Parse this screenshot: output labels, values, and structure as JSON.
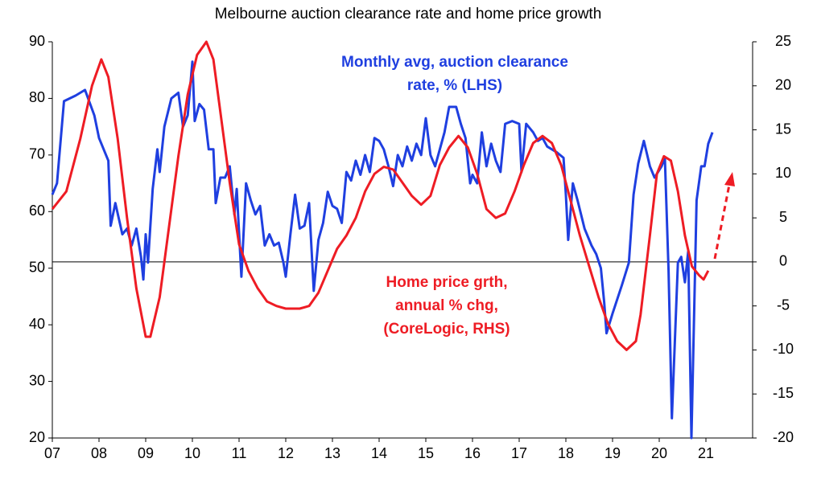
{
  "chart_data": {
    "type": "line",
    "title": "Melbourne auction clearance rate and home price growth",
    "annotations": [
      {
        "lines": [
          "Monthly avg, auction clearance",
          "rate, % (LHS)"
        ],
        "color": "#1f3fe0"
      },
      {
        "lines": [
          "Home price grth,",
          "annual % chg,",
          "(CoreLogic, RHS)"
        ],
        "color": "#ee1c24"
      }
    ],
    "xlim": [
      2007,
      2022
    ],
    "xticks": [
      {
        "value": 2007,
        "label": "07"
      },
      {
        "value": 2008,
        "label": "08"
      },
      {
        "value": 2009,
        "label": "09"
      },
      {
        "value": 2010,
        "label": "10"
      },
      {
        "value": 2011,
        "label": "11"
      },
      {
        "value": 2012,
        "label": "12"
      },
      {
        "value": 2013,
        "label": "13"
      },
      {
        "value": 2014,
        "label": "14"
      },
      {
        "value": 2015,
        "label": "15"
      },
      {
        "value": 2016,
        "label": "16"
      },
      {
        "value": 2017,
        "label": "17"
      },
      {
        "value": 2018,
        "label": "18"
      },
      {
        "value": 2019,
        "label": "19"
      },
      {
        "value": 2020,
        "label": "20"
      },
      {
        "value": 2021,
        "label": "21"
      }
    ],
    "ylim": [
      20,
      90
    ],
    "yticks": [
      20,
      30,
      40,
      50,
      60,
      70,
      80,
      90
    ],
    "y2lim": [
      -20,
      25
    ],
    "y2ticks": [
      -20,
      -15,
      -10,
      -5,
      0,
      5,
      10,
      15,
      20,
      25
    ],
    "series": [
      {
        "color": "#1f3fe0",
        "axis": "y",
        "x": [
          2007.0,
          2007.1,
          2007.25,
          2007.5,
          2007.7,
          2007.9,
          2008.0,
          2008.2,
          2008.25,
          2008.35,
          2008.5,
          2008.6,
          2008.7,
          2008.8,
          2008.9,
          2008.95,
          2009.0,
          2009.05,
          2009.15,
          2009.25,
          2009.3,
          2009.4,
          2009.55,
          2009.7,
          2009.8,
          2009.9,
          2010.0,
          2010.05,
          2010.15,
          2010.25,
          2010.35,
          2010.45,
          2010.5,
          2010.6,
          2010.7,
          2010.8,
          2010.9,
          2010.95,
          2011.05,
          2011.15,
          2011.25,
          2011.35,
          2011.45,
          2011.55,
          2011.65,
          2011.75,
          2011.85,
          2011.95,
          2012.0,
          2012.1,
          2012.2,
          2012.3,
          2012.4,
          2012.5,
          2012.6,
          2012.7,
          2012.8,
          2012.9,
          2013.0,
          2013.1,
          2013.2,
          2013.3,
          2013.4,
          2013.5,
          2013.6,
          2013.7,
          2013.8,
          2013.9,
          2014.0,
          2014.1,
          2014.2,
          2014.3,
          2014.4,
          2014.5,
          2014.6,
          2014.7,
          2014.8,
          2014.9,
          2015.0,
          2015.1,
          2015.2,
          2015.3,
          2015.4,
          2015.5,
          2015.65,
          2015.75,
          2015.85,
          2015.95,
          2016.0,
          2016.1,
          2016.2,
          2016.3,
          2016.4,
          2016.5,
          2016.6,
          2016.7,
          2016.85,
          2017.0,
          2017.05,
          2017.15,
          2017.3,
          2017.4,
          2017.5,
          2017.6,
          2017.8,
          2017.95,
          2018.0,
          2018.05,
          2018.15,
          2018.25,
          2018.4,
          2018.55,
          2018.65,
          2018.75,
          2018.82,
          2018.87,
          2019.0,
          2019.2,
          2019.35,
          2019.45,
          2019.55,
          2019.67,
          2019.8,
          2019.9,
          2020.05,
          2020.12,
          2020.2,
          2020.27,
          2020.4,
          2020.47,
          2020.55,
          2020.62,
          2020.69,
          2020.8,
          2020.9,
          2020.97,
          2021.05,
          2021.14
        ],
        "values": [
          63,
          65,
          79.5,
          80.5,
          81.5,
          77,
          73,
          69,
          57.5,
          61.5,
          56,
          57,
          54,
          57,
          52,
          48,
          56,
          51,
          64,
          71,
          67,
          75,
          80,
          81,
          75,
          77,
          86.5,
          76,
          79,
          78,
          71,
          71,
          61.5,
          66,
          66,
          68,
          59.5,
          64,
          48.5,
          65,
          62,
          59.5,
          61,
          54,
          56,
          54,
          54.5,
          51,
          48.5,
          56,
          63,
          57,
          57.5,
          61.5,
          46,
          55,
          58,
          63.5,
          61,
          60.5,
          58,
          67,
          65.5,
          69,
          66.5,
          70,
          67,
          73,
          72.5,
          71,
          68,
          64.5,
          70,
          68,
          71.5,
          69,
          72,
          70,
          76.5,
          70,
          68,
          71,
          74,
          78.5,
          78.5,
          75.5,
          73,
          65,
          66.5,
          65,
          74,
          68,
          72,
          69,
          67,
          75.5,
          76,
          75.5,
          67,
          75.5,
          74,
          72.5,
          73,
          71.5,
          70.5,
          69.5,
          63,
          55,
          65,
          62,
          57,
          54,
          52.5,
          50,
          44,
          38.5,
          42,
          47,
          51,
          63,
          68.5,
          72.5,
          68,
          66,
          68,
          69.5,
          49.5,
          23.5,
          51,
          52,
          47.5,
          53,
          20,
          62,
          68,
          68,
          72,
          74
        ]
      },
      {
        "color": "#ee1c24",
        "axis": "y2",
        "x": [
          2007.0,
          2007.3,
          2007.6,
          2007.85,
          2008.05,
          2008.2,
          2008.4,
          2008.6,
          2008.8,
          2009.0,
          2009.1,
          2009.3,
          2009.5,
          2009.7,
          2009.9,
          2010.1,
          2010.3,
          2010.45,
          2010.6,
          2010.8,
          2011.0,
          2011.2,
          2011.4,
          2011.6,
          2011.8,
          2012.0,
          2012.3,
          2012.5,
          2012.7,
          2012.9,
          2013.1,
          2013.3,
          2013.5,
          2013.7,
          2013.9,
          2014.1,
          2014.3,
          2014.5,
          2014.7,
          2014.9,
          2015.1,
          2015.3,
          2015.5,
          2015.7,
          2015.9,
          2016.1,
          2016.3,
          2016.5,
          2016.7,
          2016.9,
          2017.1,
          2017.3,
          2017.5,
          2017.7,
          2017.9,
          2018.1,
          2018.3,
          2018.5,
          2018.7,
          2018.9,
          2019.1,
          2019.3,
          2019.5,
          2019.6,
          2019.8,
          2019.95,
          2020.1,
          2020.25,
          2020.4,
          2020.55,
          2020.7,
          2020.85,
          2020.95,
          2021.05
        ],
        "values": [
          6,
          8,
          14,
          20,
          23,
          21,
          14,
          5,
          -3,
          -8.5,
          -8.5,
          -4,
          4,
          12,
          19,
          23.5,
          25,
          23,
          17,
          9,
          2,
          -1,
          -3,
          -4.5,
          -5,
          -5.3,
          -5.3,
          -5,
          -3.5,
          -1,
          1.5,
          3,
          5,
          8,
          10,
          10.8,
          10.5,
          9,
          7.5,
          6.5,
          7.5,
          11,
          13,
          14.3,
          13,
          10,
          6,
          5,
          5.5,
          8,
          11,
          13.5,
          14.3,
          13.5,
          11,
          7,
          3,
          -0.5,
          -4,
          -7,
          -9,
          -10,
          -9,
          -6,
          3,
          10,
          12,
          11.5,
          8,
          3,
          -0.5,
          -1.5,
          -2,
          -1
        ]
      }
    ]
  }
}
